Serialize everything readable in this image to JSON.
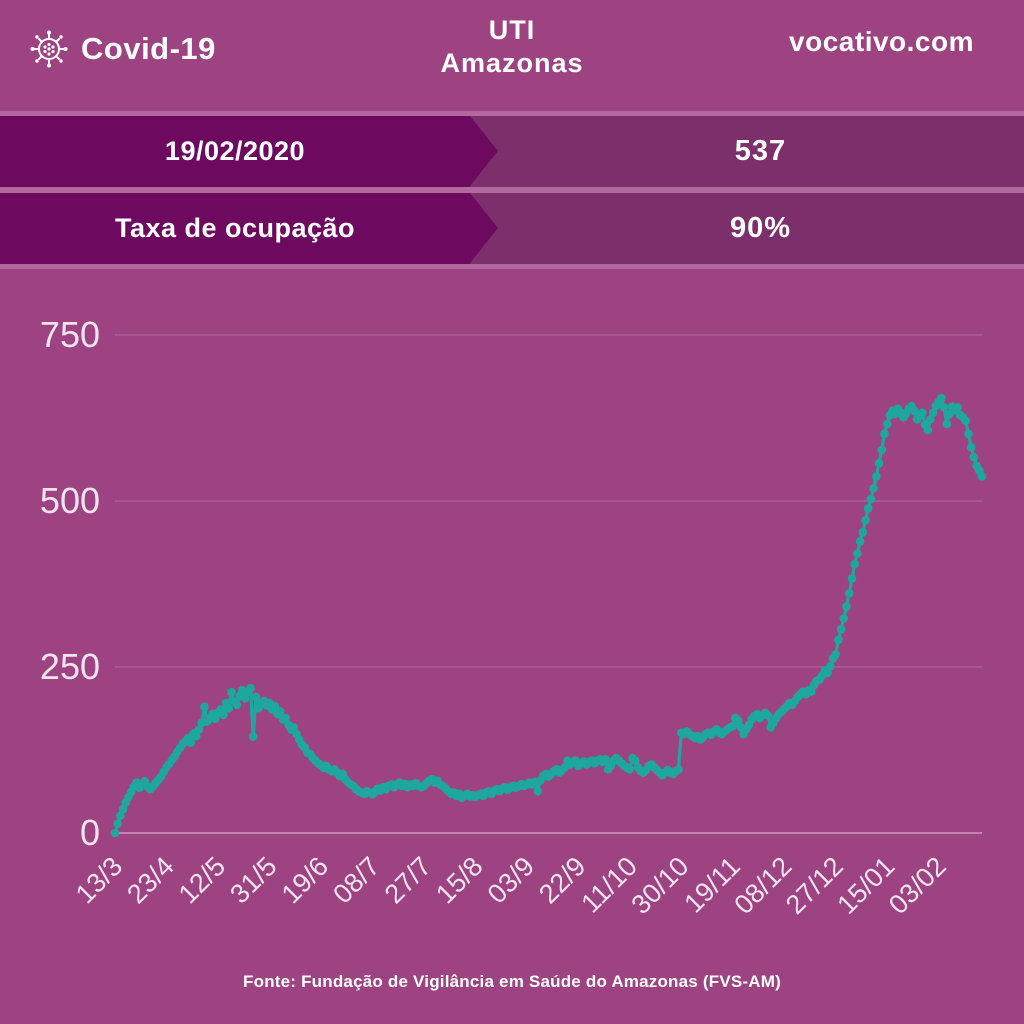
{
  "header": {
    "brand": "Covid-19",
    "title_line1": "UTI",
    "title_line2": "Amazonas",
    "site": "vocativo.com"
  },
  "banners": [
    {
      "label": "19/02/2020",
      "value": "537"
    },
    {
      "label": "Taxa de ocupação",
      "value": "90%"
    }
  ],
  "footer": {
    "source": "Fonte: Fundação de Vigilância em Saúde do Amazonas (FVS-AM)"
  },
  "colors": {
    "background": "#9d4381",
    "banner_dark": "#6d0a5f",
    "banner_mid": "#7d2f6b",
    "separator_stripe": "#b2689e",
    "series_teal": "#1ea79e",
    "grid": "#ae6097",
    "grid_zero": "#c987b3",
    "axis_text": "#f2e4ef",
    "text": "#ffffff"
  },
  "chart_data": {
    "type": "line",
    "title": "UTI Amazonas",
    "xlabel": "",
    "ylabel": "",
    "ylim": [
      0,
      750
    ],
    "y_ticks": [
      0,
      250,
      500,
      750
    ],
    "grid": "horizontal",
    "legend": "none",
    "marker": "circle",
    "x_tick_every": 19,
    "x_tick_labels": [
      "13/3",
      "23/4",
      "12/5",
      "31/5",
      "19/6",
      "08/7",
      "27/7",
      "15/8",
      "03/9",
      "22/9",
      "11/10",
      "30/10",
      "19/11",
      "08/12",
      "27/12",
      "15/01",
      "03/02"
    ],
    "series": [
      {
        "values": [
          0,
          14,
          26,
          36,
          46,
          54,
          62,
          70,
          76,
          68,
          73,
          78,
          70,
          66,
          70,
          75,
          80,
          85,
          92,
          99,
          104,
          110,
          115,
          122,
          128,
          134,
          138,
          143,
          136,
          150,
          146,
          156,
          166,
          190,
          168,
          173,
          179,
          172,
          181,
          186,
          178,
          196,
          188,
          212,
          198,
          193,
          206,
          215,
          203,
          213,
          218,
          145,
          205,
          188,
          196,
          199,
          192,
          196,
          186,
          191,
          179,
          183,
          171,
          173,
          163,
          156,
          159,
          149,
          141,
          133,
          129,
          121,
          119,
          113,
          109,
          105,
          102,
          98,
          101,
          96,
          93,
          96,
          91,
          86,
          89,
          81,
          76,
          73,
          71,
          66,
          63,
          61,
          59,
          63,
          61,
          58,
          62,
          67,
          64,
          69,
          66,
          71,
          73,
          69,
          73,
          76,
          71,
          74,
          69,
          73,
          71,
          75,
          71,
          69,
          71,
          75,
          79,
          81,
          76,
          79,
          73,
          71,
          67,
          63,
          59,
          61,
          56,
          59,
          53,
          56,
          59,
          55,
          57,
          54,
          57,
          59,
          56,
          61,
          63,
          59,
          64,
          66,
          63,
          67,
          69,
          65,
          69,
          71,
          68,
          71,
          74,
          71,
          73,
          76,
          73,
          77,
          63,
          79,
          86,
          89,
          85,
          89,
          93,
          96,
          91,
          95,
          99,
          109,
          103,
          106,
          109,
          101,
          105,
          108,
          103,
          107,
          109,
          105,
          109,
          111,
          107,
          111,
          96,
          101,
          109,
          113,
          109,
          105,
          101,
          98,
          96,
          113,
          109,
          99,
          93,
          91,
          95,
          101,
          103,
          99,
          95,
          91,
          87,
          91,
          95,
          91,
          89,
          93,
          96,
          151,
          149,
          153,
          149,
          146,
          143,
          146,
          141,
          144,
          149,
          151,
          148,
          153,
          156,
          151,
          149,
          153,
          156,
          159,
          161,
          173,
          169,
          159,
          149,
          156,
          163,
          171,
          176,
          179,
          173,
          177,
          181,
          177,
          159,
          166,
          173,
          179,
          183,
          187,
          191,
          196,
          193,
          199,
          205,
          209,
          213,
          209,
          215,
          213,
          223,
          229,
          231,
          237,
          245,
          241,
          251,
          263,
          269,
          291,
          307,
          323,
          341,
          361,
          383,
          405,
          421,
          439,
          453,
          471,
          489,
          503,
          519,
          537,
          557,
          577,
          601,
          616,
          629,
          636,
          631,
          639,
          633,
          626,
          631,
          639,
          643,
          636,
          623,
          629,
          633,
          615,
          607,
          623,
          633,
          643,
          649,
          655,
          641,
          616,
          631,
          642,
          637,
          641,
          629,
          626,
          621,
          601,
          581,
          566,
          553,
          546,
          537
        ]
      }
    ]
  }
}
